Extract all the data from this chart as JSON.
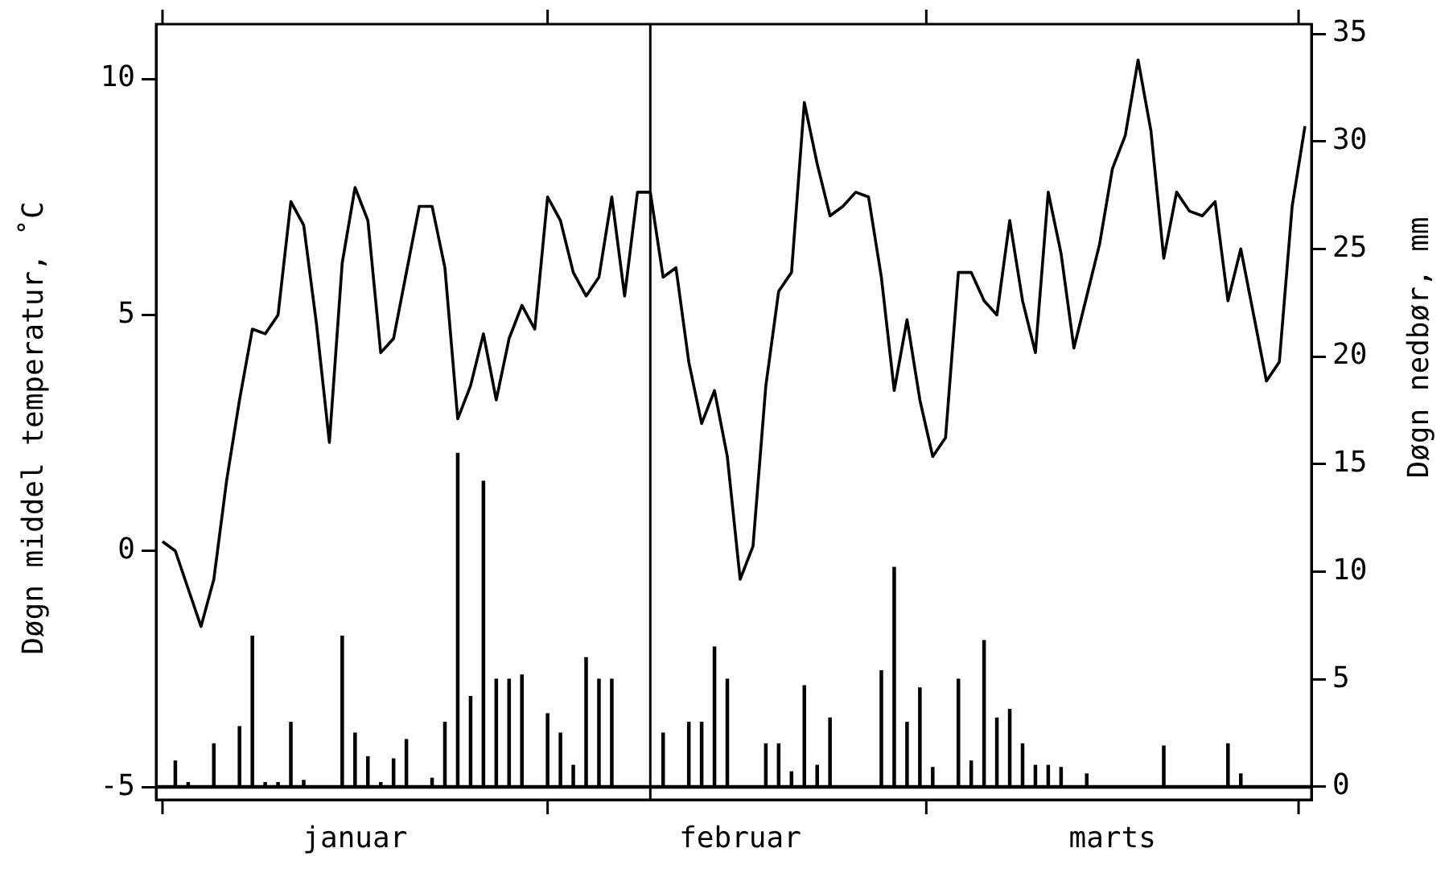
{
  "chart_data": {
    "type": "line",
    "xlabel": null,
    "ylabel": "Døgn middel temperatur, ˚C",
    "y2label": "Døgn nedbør, mm",
    "categories": [
      null,
      null,
      null,
      null,
      null,
      null,
      null,
      null,
      null,
      null,
      null,
      null,
      null,
      null,
      null,
      "januar",
      null,
      null,
      null,
      null,
      null,
      null,
      null,
      null,
      null,
      null,
      null,
      null,
      null,
      null,
      null,
      null,
      null,
      null,
      null,
      null,
      null,
      null,
      null,
      null,
      null,
      null,
      null,
      null,
      null,
      "februar",
      null,
      null,
      null,
      null,
      null,
      null,
      null,
      null,
      null,
      null,
      null,
      null,
      null,
      null,
      null,
      null,
      null,
      null,
      null,
      null,
      null,
      null,
      null,
      null,
      null,
      null,
      null,
      null,
      "marts",
      null,
      null,
      null,
      null,
      null,
      null,
      null,
      null,
      null,
      null,
      null,
      null,
      null,
      null,
      null
    ],
    "series": [
      {
        "axis": "y",
        "color": "#000000",
        "values": [
          0.2,
          0.0,
          -0.8,
          -1.6,
          -0.6,
          1.5,
          3.2,
          4.7,
          4.6,
          5.0,
          7.4,
          6.9,
          4.8,
          2.3,
          6.1,
          7.7,
          7.0,
          4.2,
          4.5,
          5.9,
          7.3,
          7.3,
          6.0,
          2.8,
          3.5,
          4.6,
          3.2,
          4.5,
          5.2,
          4.7,
          7.5,
          7.0,
          5.9,
          5.4,
          5.8,
          7.5,
          5.4,
          7.6,
          7.6,
          5.8,
          6.0,
          4.0,
          2.7,
          3.4,
          2.0,
          -0.6,
          0.1,
          3.5,
          5.5,
          5.9,
          9.5,
          8.2,
          7.1,
          7.3,
          7.6,
          7.5,
          5.8,
          3.4,
          4.9,
          3.2,
          2.0,
          2.4,
          5.9,
          5.9,
          5.3,
          5.0,
          7.0,
          5.3,
          4.2,
          7.6,
          6.3,
          4.3,
          5.4,
          6.5,
          8.1,
          8.8,
          10.4,
          8.9,
          6.2,
          7.6,
          7.2,
          7.1,
          7.4,
          5.3,
          6.4,
          5.0,
          3.6,
          4.0,
          7.3,
          9.0
        ]
      },
      {
        "type": "bar",
        "axis": "y2",
        "color": "#000000",
        "values": [
          0,
          1.2,
          0.2,
          0,
          2.0,
          0,
          2.8,
          7.0,
          0.2,
          0.2,
          3.0,
          0.3,
          0,
          0,
          7.0,
          2.5,
          1.4,
          0.2,
          1.3,
          2.2,
          0,
          0.4,
          3.0,
          15.5,
          4.2,
          14.2,
          5.0,
          5.0,
          5.2,
          0,
          3.4,
          2.5,
          1.0,
          6.0,
          5.0,
          5.0,
          0,
          0,
          0,
          2.5,
          0,
          3.0,
          3.0,
          6.5,
          5.0,
          0,
          0,
          2.0,
          2.0,
          0.7,
          4.7,
          1.0,
          3.2,
          0,
          0,
          0,
          5.4,
          10.2,
          3.0,
          4.6,
          0.9,
          0,
          5.0,
          1.2,
          6.8,
          3.2,
          3.6,
          2.0,
          1.0,
          1.0,
          0.9,
          0,
          0.6,
          0,
          0,
          0,
          0,
          0,
          1.9,
          0,
          0,
          0,
          0,
          2.0,
          0.6,
          0,
          0,
          0,
          0,
          0
        ]
      }
    ],
    "ylim": [
      -5.27,
      11.16
    ],
    "yticks": [
      -5,
      0,
      5,
      10
    ],
    "y2lim": [
      -0.6,
      35.45
    ],
    "y2ticks": [
      0,
      5,
      10,
      15,
      20,
      25,
      30,
      35
    ],
    "ref_lines": [
      {
        "axis": "y2",
        "value": 0,
        "color": "#000000"
      }
    ],
    "grid": false,
    "legend": false,
    "marker": "none",
    "line_style": "solid"
  }
}
